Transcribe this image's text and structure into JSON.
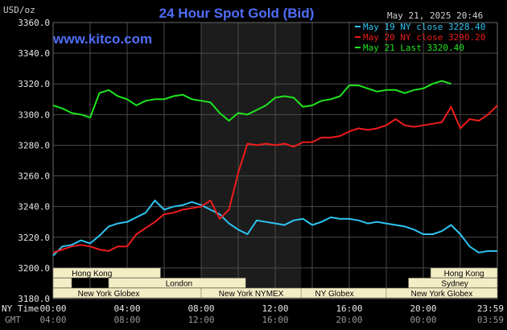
{
  "header": {
    "title": "24 Hour Spot Gold (Bid)",
    "unit": "USD/oz",
    "datetime": "May 21, 2025 20:46",
    "brand": "www.kitco.com"
  },
  "colors": {
    "background": "#000000",
    "plot_background": "#000000",
    "grid": "#4a4a4a",
    "night_band": "#1c1c1c",
    "series_may19": "#2ec4f2",
    "series_may20": "#ee1c1c",
    "series_may21": "#1ee61e",
    "market_bar": "#f3edc5",
    "title": "#4f6ef7"
  },
  "axes": {
    "x_timezone_main": "NY Time",
    "x_timezone_alt": "GMT",
    "x_ticks_main": [
      "00:00",
      "04:00",
      "08:00",
      "12:00",
      "16:00",
      "20:00",
      "23:59"
    ],
    "x_ticks_gmt": [
      "04:00",
      "08:00",
      "12:00",
      "16:00",
      "20:00",
      "00:00",
      "03:59"
    ]
  },
  "markets": [
    {
      "label": "Hong Kong"
    },
    {
      "label": "London"
    },
    {
      "label": "New York Globex"
    },
    {
      "label": "New York NYMEX"
    },
    {
      "label": "NY Globex"
    },
    {
      "label": "Hong Kong"
    },
    {
      "label": "Sydney"
    },
    {
      "label": "New York Globex"
    }
  ],
  "chart_data": {
    "type": "line",
    "title": "24 Hour Spot Gold (Bid)",
    "ylabel": "USD/oz",
    "ylim": [
      3180,
      3360
    ],
    "yticks": [
      "3180.0",
      "3200.0",
      "3220.0",
      "3240.0",
      "3260.0",
      "3280.0",
      "3300.0",
      "3320.0",
      "3340.0",
      "3360.0"
    ],
    "xlim": [
      0,
      24
    ],
    "grid": true,
    "legend": "top-right",
    "series": [
      {
        "name": "May 19 NY close 3228.40",
        "color": "#2ec4f2",
        "x": [
          0,
          0.5,
          1,
          1.5,
          2,
          2.5,
          3,
          3.5,
          4,
          4.5,
          5,
          5.5,
          6,
          6.5,
          7,
          7.5,
          8,
          8.5,
          9,
          9.5,
          10,
          10.5,
          11,
          11.5,
          12,
          12.5,
          13,
          13.5,
          14,
          14.5,
          15,
          15.5,
          16,
          16.5,
          17,
          17.5,
          18,
          18.5,
          19,
          19.5,
          20,
          20.5,
          21,
          21.5,
          22,
          22.5,
          23,
          23.5,
          24
        ],
        "y": [
          3208,
          3214,
          3215,
          3218,
          3216,
          3221,
          3227,
          3229,
          3230,
          3233,
          3236,
          3244,
          3238,
          3240,
          3241,
          3243,
          3241,
          3238,
          3235,
          3229,
          3225,
          3222,
          3231,
          3230,
          3229,
          3228,
          3231,
          3232,
          3228,
          3230,
          3233,
          3232,
          3232,
          3231,
          3229,
          3230,
          3229,
          3228,
          3227,
          3225,
          3222,
          3222,
          3224,
          3228,
          3222,
          3214,
          3210,
          3211,
          3211
        ]
      },
      {
        "name": "May 20 NY close 3290.20",
        "color": "#ee1c1c",
        "x": [
          0,
          0.5,
          1,
          1.5,
          2,
          2.5,
          3,
          3.5,
          4,
          4.5,
          5,
          5.5,
          6,
          6.5,
          7,
          7.5,
          8,
          8.5,
          9,
          9.5,
          10,
          10.5,
          11,
          11.5,
          12,
          12.5,
          13,
          13.5,
          14,
          14.5,
          15,
          15.5,
          16,
          16.5,
          17,
          17.5,
          18,
          18.5,
          19,
          19.5,
          20,
          20.5,
          21,
          21.5,
          22,
          22.5,
          23,
          23.5,
          24
        ],
        "y": [
          3210,
          3212,
          3214,
          3215,
          3214,
          3212,
          3211,
          3214,
          3214,
          3222,
          3226,
          3230,
          3235,
          3236,
          3238,
          3239,
          3240,
          3244,
          3232,
          3238,
          3262,
          3281,
          3280,
          3281,
          3280,
          3281,
          3279,
          3282,
          3282,
          3285,
          3285,
          3286,
          3289,
          3291,
          3290,
          3291,
          3293,
          3297,
          3293,
          3292,
          3293,
          3294,
          3295,
          3305,
          3291,
          3297,
          3296,
          3300,
          3306
        ]
      },
      {
        "name": "May 21 Last 3320.40",
        "color": "#1ee61e",
        "x": [
          0,
          0.5,
          1,
          1.5,
          2,
          2.5,
          3,
          3.5,
          4,
          4.5,
          5,
          5.5,
          6,
          6.5,
          7,
          7.5,
          8,
          8.5,
          9,
          9.5,
          10,
          10.5,
          11,
          11.5,
          12,
          12.5,
          13,
          13.5,
          14,
          14.5,
          15,
          15.5,
          16,
          16.5,
          17,
          17.5,
          18,
          18.5,
          19,
          19.5,
          20,
          20.5,
          21,
          21.5
        ],
        "y": [
          3306,
          3304,
          3301,
          3300,
          3298,
          3314,
          3316,
          3312,
          3310,
          3306,
          3309,
          3310,
          3310,
          3312,
          3313,
          3310,
          3309,
          3308,
          3301,
          3296,
          3301,
          3300,
          3303,
          3306,
          3311,
          3312,
          3311,
          3305,
          3306,
          3309,
          3310,
          3312,
          3319,
          3319,
          3317,
          3315,
          3316,
          3316,
          3314,
          3316,
          3317,
          3320,
          3322,
          3320
        ]
      }
    ]
  }
}
